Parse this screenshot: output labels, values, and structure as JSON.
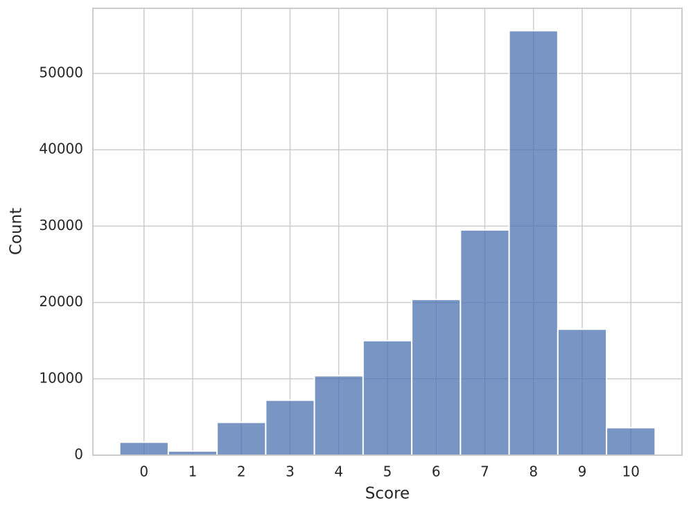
{
  "chart_data": {
    "type": "histogram",
    "x_label": "Score",
    "y_label": "Count",
    "bins": [
      -0.5,
      0.5,
      1.5,
      2.5,
      3.5,
      4.5,
      5.5,
      6.5,
      7.5,
      8.5,
      9.5,
      10.5
    ],
    "values": [
      1700,
      550,
      4300,
      7200,
      10400,
      15000,
      20400,
      29500,
      55600,
      16500,
      3600
    ],
    "color": "#4c72b0",
    "xlim": [
      -1.05,
      11.05
    ],
    "xticks": [
      0,
      1,
      2,
      3,
      4,
      5,
      6,
      7,
      8,
      9,
      10
    ],
    "ylim": [
      0,
      58530
    ],
    "yticks": [
      0,
      10000,
      20000,
      30000,
      40000,
      50000
    ],
    "grid": true
  }
}
